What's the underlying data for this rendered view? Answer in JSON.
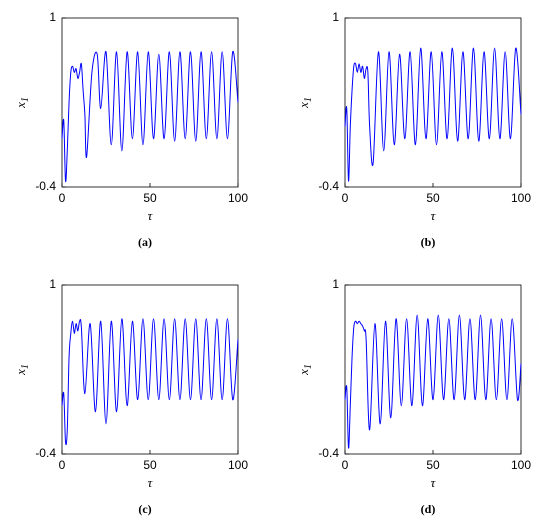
{
  "chart_data": [
    {
      "type": "line",
      "caption": "(a)",
      "x_label": "τ",
      "y_label": [
        "x",
        "1"
      ],
      "color": "#0000ff",
      "xlim": [
        0,
        100
      ],
      "ylim": [
        -0.4,
        1
      ],
      "xticks": [
        0,
        50,
        100
      ],
      "yticks": [
        -0.4,
        1
      ],
      "x": [
        0,
        1,
        2,
        3,
        4,
        5,
        6,
        7,
        8,
        9,
        10,
        11,
        12,
        13,
        14,
        17,
        20,
        22,
        25,
        28,
        31,
        34,
        37,
        40,
        43,
        46,
        49,
        52,
        55,
        58,
        61,
        64,
        67,
        70,
        73,
        76,
        79,
        82,
        85,
        88,
        91,
        94,
        97,
        100
      ],
      "values": [
        0,
        0.15,
        -0.35,
        -0.1,
        0.3,
        0.55,
        0.6,
        0.55,
        0.58,
        0.5,
        0.55,
        0.62,
        0.4,
        0.2,
        -0.15,
        0.55,
        0.7,
        0.25,
        0.72,
        -0.05,
        0.72,
        -0.1,
        0.72,
        0,
        0.72,
        -0.05,
        0.72,
        0,
        0.7,
        0,
        0.72,
        -0.02,
        0.72,
        0,
        0.72,
        -0.02,
        0.72,
        0,
        0.72,
        0,
        0.72,
        0,
        0.72,
        0.3
      ]
    },
    {
      "type": "line",
      "caption": "(b)",
      "x_label": "τ",
      "y_label": [
        "x",
        "1"
      ],
      "color": "#0000ff",
      "xlim": [
        0,
        100
      ],
      "ylim": [
        -0.4,
        1
      ],
      "xticks": [
        0,
        50,
        100
      ],
      "yticks": [
        -0.4,
        1
      ],
      "x": [
        0,
        1,
        2,
        3,
        4,
        5,
        6,
        7,
        8,
        9,
        10,
        11,
        12,
        13,
        14,
        16,
        19,
        22,
        25,
        28,
        31,
        34,
        37,
        40,
        43,
        46,
        49,
        52,
        55,
        58,
        61,
        64,
        67,
        70,
        73,
        76,
        79,
        82,
        85,
        88,
        91,
        94,
        97,
        100
      ],
      "values": [
        0.1,
        0.25,
        -0.35,
        0.1,
        0.4,
        0.6,
        0.62,
        0.55,
        0.62,
        0.55,
        0.6,
        0.5,
        0.58,
        0.55,
        0.1,
        -0.2,
        0.72,
        -0.1,
        0.72,
        -0.05,
        0.7,
        0,
        0.72,
        -0.05,
        0.75,
        0,
        0.72,
        -0.05,
        0.72,
        0,
        0.75,
        -0.02,
        0.72,
        0,
        0.75,
        -0.02,
        0.72,
        0,
        0.75,
        0,
        0.72,
        0,
        0.75,
        0.2
      ]
    },
    {
      "type": "line",
      "caption": "(c)",
      "x_label": "τ",
      "y_label": [
        "x",
        "1"
      ],
      "color": "#0000ff",
      "xlim": [
        0,
        100
      ],
      "ylim": [
        -0.4,
        1
      ],
      "xticks": [
        0,
        50,
        100
      ],
      "yticks": [
        -0.4,
        1
      ],
      "x": [
        0,
        1,
        2,
        3,
        4,
        5,
        6,
        7,
        8,
        9,
        10,
        11,
        13,
        16,
        19,
        22,
        25,
        28,
        31,
        34,
        37,
        40,
        43,
        46,
        49,
        52,
        55,
        58,
        61,
        64,
        67,
        70,
        73,
        76,
        79,
        82,
        85,
        88,
        91,
        94,
        97,
        100
      ],
      "values": [
        0,
        0.1,
        -0.3,
        -0.2,
        0.4,
        0.6,
        0.7,
        0.6,
        0.68,
        0.62,
        0.7,
        0.65,
        0.1,
        0.68,
        -0.05,
        0.7,
        -0.15,
        0.7,
        -0.05,
        0.72,
        0,
        0.7,
        0.05,
        0.72,
        0.05,
        0.72,
        0.05,
        0.72,
        0.05,
        0.72,
        0.05,
        0.72,
        0.05,
        0.72,
        0.05,
        0.72,
        0.05,
        0.72,
        0.05,
        0.72,
        0.05,
        0.55
      ]
    },
    {
      "type": "line",
      "caption": "(d)",
      "x_label": "τ",
      "y_label": [
        "x",
        "1"
      ],
      "color": "#0000ff",
      "xlim": [
        0,
        100
      ],
      "ylim": [
        -0.4,
        1
      ],
      "xticks": [
        0,
        50,
        100
      ],
      "yticks": [
        -0.4,
        1
      ],
      "x": [
        0,
        1,
        2,
        3,
        4,
        5,
        6,
        7,
        8,
        9,
        10,
        11,
        12,
        14,
        17,
        20,
        23,
        26,
        29,
        32,
        35,
        38,
        41,
        44,
        47,
        50,
        53,
        56,
        59,
        62,
        65,
        68,
        71,
        74,
        77,
        80,
        83,
        86,
        89,
        92,
        95,
        98,
        100
      ],
      "values": [
        0.05,
        0.15,
        -0.35,
        0,
        0.4,
        0.65,
        0.7,
        0.68,
        0.7,
        0.68,
        0.66,
        0.62,
        0.55,
        -0.2,
        0.68,
        -0.15,
        0.7,
        -0.1,
        0.72,
        0,
        0.72,
        0,
        0.75,
        0,
        0.72,
        0.05,
        0.75,
        0.05,
        0.72,
        0.05,
        0.75,
        0.05,
        0.72,
        0.05,
        0.75,
        0.05,
        0.72,
        0.05,
        0.72,
        0.05,
        0.72,
        0.05,
        0.35
      ]
    }
  ]
}
